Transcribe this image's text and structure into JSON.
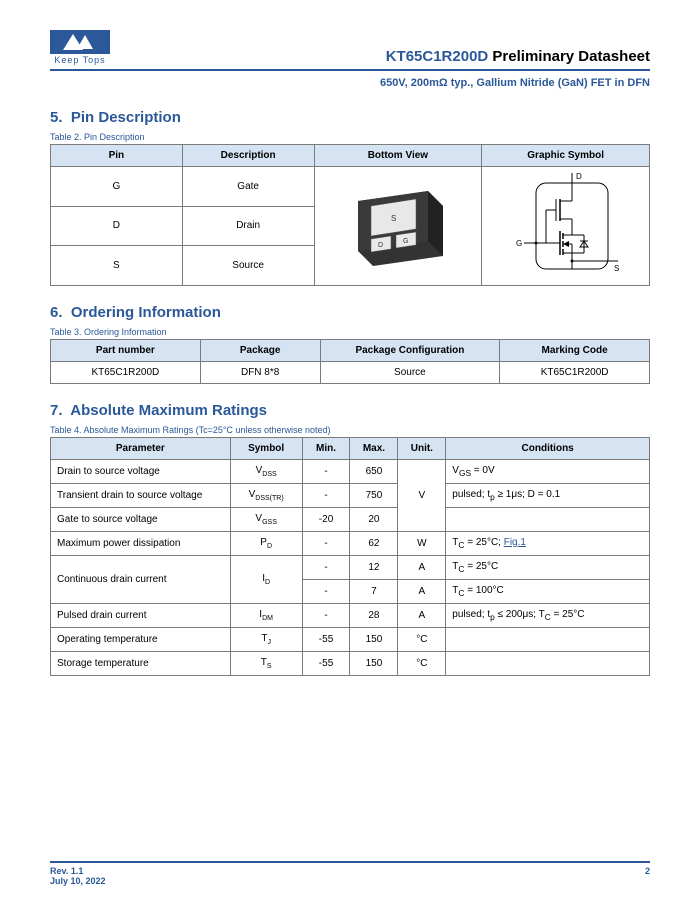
{
  "brand": {
    "name": "Keep Tops"
  },
  "header": {
    "part_number": "KT65C1R200D",
    "doc_type": "Preliminary Datasheet",
    "subtitle": "650V, 200mΩ typ., Gallium Nitride (GaN) FET in DFN"
  },
  "sections": {
    "pin_desc": {
      "num": "5.",
      "title": "Pin Description",
      "caption": "Table 2. Pin Description"
    },
    "ordering": {
      "num": "6.",
      "title": "Ordering Information",
      "caption": "Table 3. Ordering Information"
    },
    "abs_max": {
      "num": "7.",
      "title": "Absolute Maximum Ratings",
      "caption": "Table 4. Absolute Maximum Ratings (Tc=25°C unless otherwise noted)"
    }
  },
  "pin_table": {
    "headers": [
      "Pin",
      "Description",
      "Bottom View",
      "Graphic Symbol"
    ],
    "rows": [
      {
        "pin": "G",
        "desc": "Gate"
      },
      {
        "pin": "D",
        "desc": "Drain"
      },
      {
        "pin": "S",
        "desc": "Source"
      }
    ],
    "header_bg": "#d5e3f3",
    "border_color": "#7a7a7a"
  },
  "ordering_table": {
    "headers": [
      "Part number",
      "Package",
      "Package Configuration",
      "Marking Code"
    ],
    "rows": [
      {
        "part": "KT65C1R200D",
        "package": "DFN 8*8",
        "config": "Source",
        "mark": "KT65C1R200D"
      }
    ]
  },
  "abs_table": {
    "headers": [
      "Parameter",
      "Symbol",
      "Min.",
      "Max.",
      "Unit.",
      "Conditions"
    ],
    "rows": [
      {
        "param": "Drain to source voltage",
        "sym_base": "V",
        "sym_sub": "DSS",
        "min": "-",
        "max": "650",
        "unit": "V",
        "unit_span_start": true,
        "unit_rowspan": 3,
        "cond_html": "V<sub>GS</sub> = 0V"
      },
      {
        "param": "Transient drain to source voltage",
        "sym_base": "V",
        "sym_sub": "DSS(TR)",
        "min": "-",
        "max": "750",
        "cond_html": "pulsed; t<sub>p</sub> ≥ 1μs; D = 0.1"
      },
      {
        "param": "Gate to source voltage",
        "sym_base": "V",
        "sym_sub": "GSS",
        "min": "-20",
        "max": "20",
        "cond_html": ""
      },
      {
        "param": "Maximum power dissipation",
        "sym_base": "P",
        "sym_sub": "D",
        "min": "-",
        "max": "62",
        "unit": "W",
        "cond_html": "T<sub>C</sub> = 25°C; <span class='link'>Fig.1</span>"
      },
      {
        "param": "Continuous drain current",
        "param_rowspan": 2,
        "sym_base": "I",
        "sym_sub": "D",
        "sym_rowspan": 2,
        "min": "-",
        "max": "12",
        "unit": "A",
        "cond_html": "T<sub>C</sub> = 25°C"
      },
      {
        "min": "-",
        "max": "7",
        "unit": "A",
        "cond_html": "T<sub>C</sub> = 100°C"
      },
      {
        "param": "Pulsed drain current",
        "sym_base": "I",
        "sym_sub": "DM",
        "min": "-",
        "max": "28",
        "unit": "A",
        "cond_html": "pulsed; t<sub>p</sub> ≤ 200μs; T<sub>C</sub> = 25°C"
      },
      {
        "param": "Operating temperature",
        "sym_base": "T",
        "sym_sub": "J",
        "min": "-55",
        "max": "150",
        "unit": "°C",
        "cond_html": ""
      },
      {
        "param": "Storage temperature",
        "sym_base": "T",
        "sym_sub": "S",
        "min": "-55",
        "max": "150",
        "unit": "°C",
        "cond_html": ""
      }
    ]
  },
  "footer": {
    "rev": "Rev. 1.1",
    "date": "July 10, 2022",
    "page": "2"
  },
  "colors": {
    "primary": "#2a5898",
    "header_bg": "#d5e3f3",
    "border": "#7a7a7a",
    "text": "#000000"
  },
  "bottom_view": {
    "pad_labels": {
      "s": "S",
      "d": "D",
      "g": "G"
    },
    "body_fill": "#333333",
    "pad_fill": "#e8e8e8"
  },
  "symbol": {
    "terminals": {
      "d": "D",
      "g": "G",
      "s": "S"
    },
    "stroke": "#000000"
  }
}
